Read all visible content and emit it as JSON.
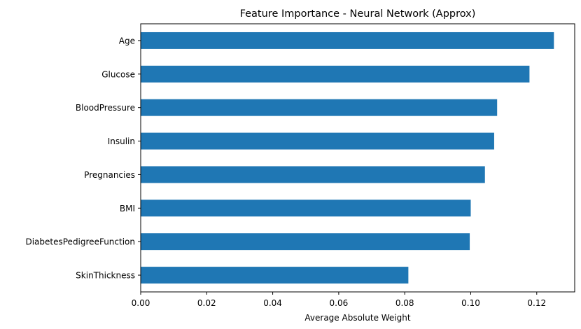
{
  "chart_data": {
    "type": "bar",
    "orientation": "horizontal",
    "title": "Feature Importance - Neural Network (Approx)",
    "xlabel": "Average Absolute Weight",
    "ylabel": "",
    "categories": [
      "Age",
      "Glucose",
      "BloodPressure",
      "Insulin",
      "Pregnancies",
      "BMI",
      "DiabetesPedigreeFunction",
      "SkinThickness"
    ],
    "values": [
      0.1252,
      0.1178,
      0.108,
      0.1071,
      0.1043,
      0.1,
      0.0997,
      0.0811
    ],
    "xlim": [
      0,
      0.1315
    ],
    "xticks": [
      "0.00",
      "0.02",
      "0.04",
      "0.06",
      "0.08",
      "0.10",
      "0.12"
    ],
    "xtick_values": [
      0,
      0.02,
      0.04,
      0.06,
      0.08,
      0.1,
      0.12
    ],
    "grid": false,
    "legend": "none",
    "bar_color": "#1f77b4"
  }
}
